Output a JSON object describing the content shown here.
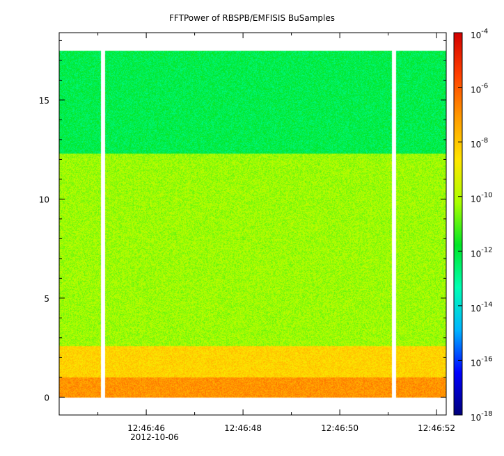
{
  "chart_data": {
    "type": "heatmap",
    "title": "FFTPower of RBSPB/EMFISIS  BuSamples",
    "xlabel": "",
    "ylabel": "",
    "x_ticks": [
      "12:46:46",
      "12:46:48",
      "12:46:50",
      "12:46:52"
    ],
    "x_tick_seconds": [
      46,
      48,
      50,
      52
    ],
    "date_label": "2012-10-06",
    "xlim_seconds": [
      44.2,
      52.2
    ],
    "minor_tick_seconds": [
      45,
      47,
      49,
      51
    ],
    "y_ticks": [
      0,
      5,
      10,
      15
    ],
    "ylim": [
      -0.9,
      18.4
    ],
    "data_ymax": 17.5,
    "data_gaps_seconds": [
      [
        45.06,
        45.14
      ],
      [
        51.07,
        51.15
      ]
    ],
    "colorbar": {
      "scale": "log",
      "range_exponent": [
        -18,
        -4
      ],
      "tick_exponents": [
        -4,
        -6,
        -8,
        -10,
        -12,
        -14,
        -16,
        -18
      ],
      "colors": [
        "#00007a",
        "#0000ff",
        "#00b4ff",
        "#00ffb4",
        "#00e626",
        "#aaff00",
        "#ffe600",
        "#ff9b00",
        "#ff4000",
        "#d20000"
      ]
    },
    "bands": [
      {
        "ymin": 12.3,
        "ymax": 17.5,
        "level_exponent": -12.2
      },
      {
        "ymin": 2.6,
        "ymax": 12.3,
        "level_exponent": -10.3
      },
      {
        "ymin": 1.0,
        "ymax": 2.6,
        "level_exponent": -8.3
      },
      {
        "ymin": 0.0,
        "ymax": 1.0,
        "level_exponent": -7.0
      }
    ]
  }
}
